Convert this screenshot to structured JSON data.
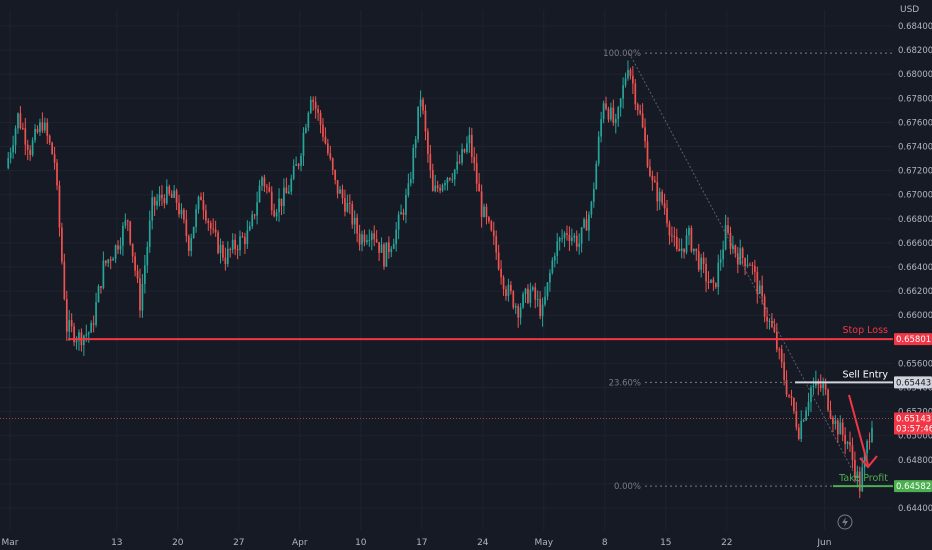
{
  "chart_data": {
    "type": "candlestick",
    "currency_label": "USD",
    "colors": {
      "background": "#161a25",
      "up": "#26a69a",
      "down": "#ef5350",
      "stop_loss": "#f23645",
      "sell_entry": "#d1d4dc",
      "take_profit": "#4caf50",
      "fib": "#787b86",
      "axis_text": "#b2b5be",
      "grid": "#1f2330"
    },
    "y_axis": {
      "min": 0.6434,
      "max": 0.6854,
      "ticks": [
        "0.68400",
        "0.68200",
        "0.68000",
        "0.67800",
        "0.67600",
        "0.67400",
        "0.67200",
        "0.67000",
        "0.66800",
        "0.66600",
        "0.66400",
        "0.66200",
        "0.66000",
        "0.65800",
        "0.65600",
        "0.65400",
        "0.65200",
        "0.65000",
        "0.64800",
        "0.64600",
        "0.64400"
      ]
    },
    "x_axis": {
      "labels": [
        {
          "label": "Mar",
          "index": 0
        },
        {
          "label": "13",
          "index": 9
        },
        {
          "label": "20",
          "index": 14
        },
        {
          "label": "27",
          "index": 19
        },
        {
          "label": "Apr",
          "index": 24
        },
        {
          "label": "10",
          "index": 29
        },
        {
          "label": "17",
          "index": 34
        },
        {
          "label": "24",
          "index": 39
        },
        {
          "label": "May",
          "index": 44
        },
        {
          "label": "8",
          "index": 49
        },
        {
          "label": "15",
          "index": 54
        },
        {
          "label": "22",
          "index": 59
        },
        {
          "label": "Jun",
          "index": 67
        }
      ],
      "total_slots": 74
    },
    "close_path": [
      [
        0,
        0.6722
      ],
      [
        1,
        0.6765
      ],
      [
        2,
        0.6738
      ],
      [
        3,
        0.676
      ],
      [
        4,
        0.6728
      ],
      [
        5,
        0.659
      ],
      [
        6,
        0.6582
      ],
      [
        7,
        0.6587
      ],
      [
        8,
        0.664
      ],
      [
        9,
        0.6656
      ],
      [
        10,
        0.668
      ],
      [
        11,
        0.661
      ],
      [
        12,
        0.669
      ],
      [
        13,
        0.67
      ],
      [
        14,
        0.6695
      ],
      [
        15,
        0.666
      ],
      [
        16,
        0.67
      ],
      [
        17,
        0.6665
      ],
      [
        18,
        0.6648
      ],
      [
        19,
        0.666
      ],
      [
        20,
        0.6668
      ],
      [
        21,
        0.6715
      ],
      [
        22,
        0.669
      ],
      [
        23,
        0.67
      ],
      [
        24,
        0.6728
      ],
      [
        25,
        0.6785
      ],
      [
        26,
        0.6752
      ],
      [
        27,
        0.6708
      ],
      [
        28,
        0.669
      ],
      [
        29,
        0.6664
      ],
      [
        30,
        0.6672
      ],
      [
        31,
        0.6648
      ],
      [
        32,
        0.667
      ],
      [
        33,
        0.6702
      ],
      [
        34,
        0.6782
      ],
      [
        35,
        0.67
      ],
      [
        36,
        0.6715
      ],
      [
        37,
        0.6722
      ],
      [
        38,
        0.6745
      ],
      [
        39,
        0.6688
      ],
      [
        40,
        0.666
      ],
      [
        41,
        0.6622
      ],
      [
        42,
        0.6606
      ],
      [
        43,
        0.662
      ],
      [
        44,
        0.6602
      ],
      [
        45,
        0.6655
      ],
      [
        46,
        0.667
      ],
      [
        47,
        0.666
      ],
      [
        48,
        0.669
      ],
      [
        49,
        0.678
      ],
      [
        50,
        0.6755
      ],
      [
        51,
        0.681
      ],
      [
        52,
        0.6765
      ],
      [
        53,
        0.6708
      ],
      [
        54,
        0.669
      ],
      [
        55,
        0.665
      ],
      [
        56,
        0.6665
      ],
      [
        57,
        0.664
      ],
      [
        58,
        0.662
      ],
      [
        59,
        0.6668
      ],
      [
        60,
        0.665
      ],
      [
        61,
        0.6645
      ],
      [
        62,
        0.661
      ],
      [
        63,
        0.6582
      ],
      [
        64,
        0.654
      ],
      [
        65,
        0.6505
      ],
      [
        66,
        0.654
      ],
      [
        67,
        0.654
      ],
      [
        68,
        0.651
      ],
      [
        69,
        0.6495
      ],
      [
        70,
        0.6458
      ],
      [
        71,
        0.6514
      ]
    ],
    "annotations": {
      "stop_loss": {
        "label": "Stop Loss",
        "price": "0.65801",
        "value": 0.65801
      },
      "sell_entry": {
        "label": "Sell Entry",
        "price": "0.65443",
        "value": 0.65443
      },
      "take_profit": {
        "label": "Take Profit",
        "price": "0.64582",
        "value": 0.64582
      },
      "current": {
        "price": "0.65143",
        "countdown": "03:57:46",
        "value": 0.65143
      },
      "fib": [
        {
          "label": "100.00%",
          "value": 0.68175
        },
        {
          "label": "23.60%",
          "value": 0.65443
        },
        {
          "label": "0.00%",
          "value": 0.64582
        }
      ]
    }
  }
}
